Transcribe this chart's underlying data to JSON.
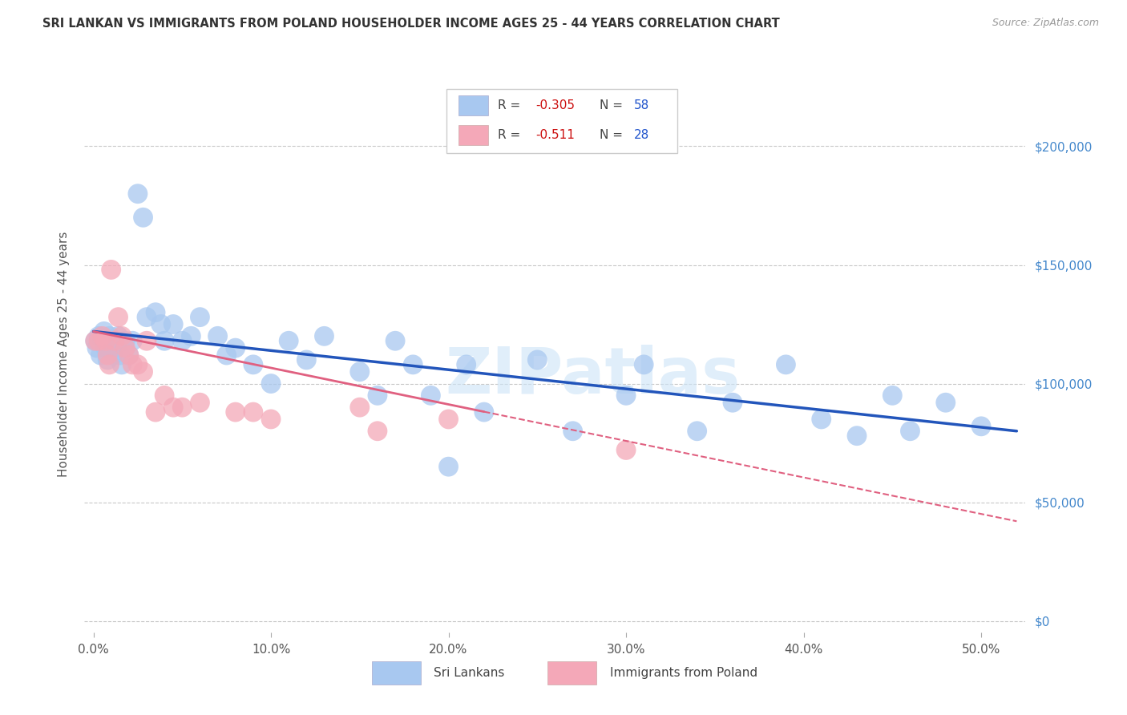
{
  "title": "SRI LANKAN VS IMMIGRANTS FROM POLAND HOUSEHOLDER INCOME AGES 25 - 44 YEARS CORRELATION CHART",
  "source": "Source: ZipAtlas.com",
  "ylabel": "Householder Income Ages 25 - 44 years",
  "xlabel_ticks": [
    "0.0%",
    "10.0%",
    "20.0%",
    "30.0%",
    "40.0%",
    "50.0%"
  ],
  "xlabel_vals": [
    0.0,
    0.1,
    0.2,
    0.3,
    0.4,
    0.5
  ],
  "ylabel_vals": [
    0,
    50000,
    100000,
    150000,
    200000
  ],
  "ylim": [
    -5000,
    230000
  ],
  "xlim": [
    -0.005,
    0.525
  ],
  "sri_lankan_R": "-0.305",
  "sri_lankan_N": "58",
  "poland_R": "-0.511",
  "poland_N": "28",
  "sri_lankan_color": "#a8c8f0",
  "sri_lankan_line_color": "#2255bb",
  "poland_color": "#f4a8b8",
  "poland_line_color": "#e06080",
  "sri_lankan_x": [
    0.001,
    0.002,
    0.003,
    0.004,
    0.005,
    0.006,
    0.007,
    0.008,
    0.009,
    0.01,
    0.011,
    0.012,
    0.013,
    0.014,
    0.015,
    0.016,
    0.018,
    0.02,
    0.022,
    0.025,
    0.028,
    0.03,
    0.035,
    0.038,
    0.04,
    0.045,
    0.05,
    0.055,
    0.06,
    0.07,
    0.075,
    0.08,
    0.09,
    0.1,
    0.11,
    0.12,
    0.13,
    0.15,
    0.16,
    0.17,
    0.18,
    0.19,
    0.2,
    0.21,
    0.22,
    0.25,
    0.27,
    0.3,
    0.31,
    0.34,
    0.36,
    0.39,
    0.41,
    0.43,
    0.45,
    0.46,
    0.48,
    0.5
  ],
  "sri_lankan_y": [
    118000,
    115000,
    120000,
    112000,
    118000,
    122000,
    115000,
    110000,
    120000,
    116000,
    112000,
    118000,
    115000,
    120000,
    112000,
    108000,
    118000,
    112000,
    118000,
    180000,
    170000,
    128000,
    130000,
    125000,
    118000,
    125000,
    118000,
    120000,
    128000,
    120000,
    112000,
    115000,
    108000,
    100000,
    118000,
    110000,
    120000,
    105000,
    95000,
    118000,
    108000,
    95000,
    65000,
    108000,
    88000,
    110000,
    80000,
    95000,
    108000,
    80000,
    92000,
    108000,
    85000,
    78000,
    95000,
    80000,
    92000,
    82000
  ],
  "poland_x": [
    0.001,
    0.003,
    0.005,
    0.007,
    0.008,
    0.009,
    0.01,
    0.012,
    0.014,
    0.016,
    0.018,
    0.02,
    0.022,
    0.025,
    0.028,
    0.03,
    0.035,
    0.04,
    0.045,
    0.05,
    0.06,
    0.08,
    0.09,
    0.1,
    0.15,
    0.16,
    0.2,
    0.3
  ],
  "poland_y": [
    118000,
    118000,
    120000,
    118000,
    112000,
    108000,
    148000,
    118000,
    128000,
    120000,
    115000,
    112000,
    108000,
    108000,
    105000,
    118000,
    88000,
    95000,
    90000,
    90000,
    92000,
    88000,
    88000,
    85000,
    90000,
    80000,
    85000,
    72000
  ],
  "watermark": "ZIPatlas",
  "background_color": "#ffffff",
  "grid_color": "#c8c8c8",
  "sri_line_x0": 0.0,
  "sri_line_x1": 0.52,
  "sri_line_y0": 122000,
  "sri_line_y1": 80000,
  "pol_line_x0": 0.0,
  "pol_line_x1": 0.52,
  "pol_line_y0": 122000,
  "pol_line_y1": 42000
}
